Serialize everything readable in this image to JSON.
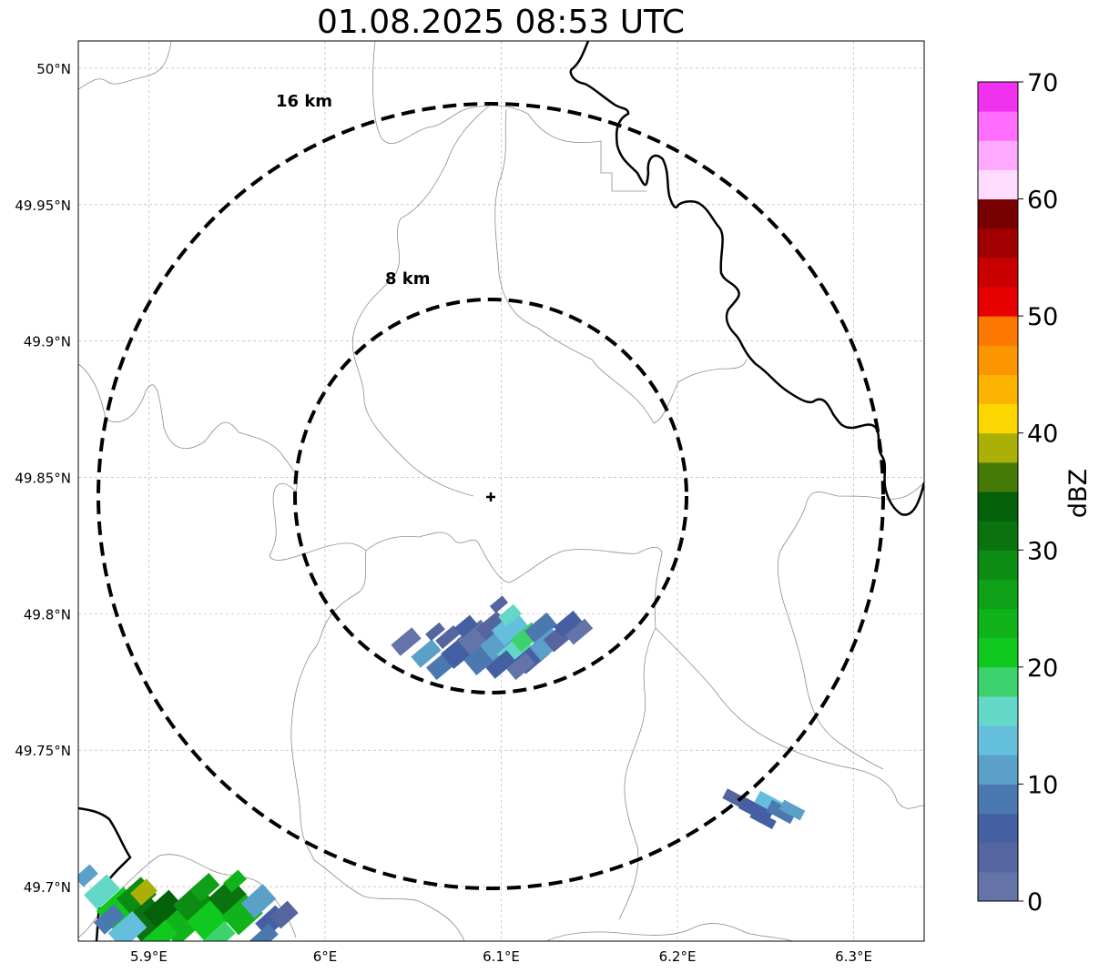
{
  "title": "01.08.2025 08:53 UTC",
  "map": {
    "lon_ticks": [
      "5.9°E",
      "6°E",
      "6.1°E",
      "6.2°E",
      "6.3°E"
    ],
    "lat_ticks": [
      "50°N",
      "49.95°N",
      "49.9°N",
      "49.85°N",
      "49.8°N",
      "49.75°N",
      "49.7°N"
    ],
    "lon_range": [
      5.86,
      6.34
    ],
    "lat_range": [
      49.68,
      50.01
    ],
    "radar_center": {
      "lon": 6.095,
      "lat": 49.843
    },
    "range_rings": [
      {
        "label": "8 km",
        "radius_km": 8
      },
      {
        "label": "16 km",
        "radius_km": 16
      }
    ],
    "grid": true
  },
  "colorbar": {
    "label": "dBZ",
    "ticks": [
      "0",
      "10",
      "20",
      "30",
      "40",
      "50",
      "60",
      "70"
    ],
    "range": [
      0,
      70
    ],
    "step": 2.5,
    "colors": [
      "#6473a8",
      "#5465a0",
      "#4460a3",
      "#4c78b0",
      "#5aa0c8",
      "#64bfdd",
      "#64d8c8",
      "#3cd26e",
      "#10c81e",
      "#10b41a",
      "#0ea016",
      "#0c8c12",
      "#0a720e",
      "#05600a",
      "#467a06",
      "#aab006",
      "#fcd600",
      "#fcb400",
      "#fc9600",
      "#fc7800",
      "#e60000",
      "#c80000",
      "#a00000",
      "#780000",
      "#ffdcff",
      "#ffaaff",
      "#ff6eff",
      "#f032f0"
    ]
  },
  "echoes": [
    {
      "id": "center",
      "lon": 6.1,
      "lat": 49.795
    },
    {
      "id": "southeast",
      "lon": 6.25,
      "lat": 49.728
    },
    {
      "id": "southwest",
      "lon": 5.92,
      "lat": 49.69
    }
  ]
}
